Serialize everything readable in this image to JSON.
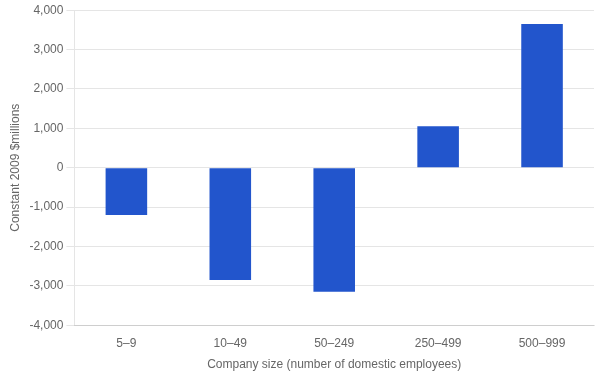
{
  "chart_data": {
    "type": "bar",
    "categories": [
      "5–9",
      "10–49",
      "50–249",
      "250–499",
      "500–999"
    ],
    "values": [
      -1200,
      -2850,
      -3150,
      1050,
      3650
    ],
    "color": "#2255CC",
    "xlabel": "Company size (number of domestic employees)",
    "ylabel": "Constant 2009 $millions",
    "ylim": [
      -4000,
      4000
    ],
    "yticks": [
      {
        "value": -4000,
        "label": "-4,000"
      },
      {
        "value": -3000,
        "label": "-3,000"
      },
      {
        "value": -2000,
        "label": "-2,000"
      },
      {
        "value": -1000,
        "label": "-1,000"
      },
      0,
      {
        "value": 1000,
        "label": "1,000"
      },
      {
        "value": 2000,
        "label": "2,000"
      },
      {
        "value": 3000,
        "label": "3,000"
      },
      {
        "value": 4000,
        "label": "4,000"
      }
    ],
    "grid": true
  }
}
